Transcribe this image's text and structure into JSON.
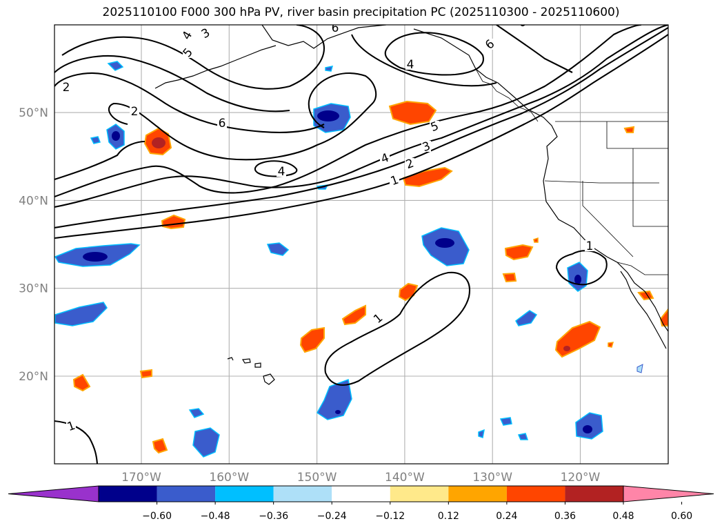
{
  "chart_data": {
    "type": "map_contour",
    "title": "2025110100 F000 300 hPa PV, river basin precipitation PC (2025110300 - 2025110600)",
    "lat_ticks": [
      {
        "value": 50,
        "label": "50°N"
      },
      {
        "value": 40,
        "label": "40°N"
      },
      {
        "value": 30,
        "label": "30°N"
      },
      {
        "value": 20,
        "label": "20°N"
      }
    ],
    "lon_ticks": [
      {
        "value": -170,
        "label": "170°W"
      },
      {
        "value": -160,
        "label": "160°W"
      },
      {
        "value": -150,
        "label": "150°W"
      },
      {
        "value": -140,
        "label": "140°W"
      },
      {
        "value": -130,
        "label": "130°W"
      },
      {
        "value": -120,
        "label": "120°W"
      }
    ],
    "grid": true,
    "contour_field": "300 hPa PV",
    "contour_labels": [
      "1",
      "1",
      "1",
      "1",
      "2",
      "2",
      "2",
      "3",
      "3",
      "4",
      "4",
      "4",
      "4",
      "5",
      "5",
      "6",
      "6",
      "6",
      "6"
    ],
    "fill_field": "river basin precipitation PC",
    "colorbar": {
      "extend": "both",
      "levels": [
        -0.6,
        -0.48,
        -0.36,
        -0.24,
        -0.12,
        0.12,
        0.24,
        0.36,
        0.48,
        0.6
      ],
      "tick_labels": [
        "−0.60",
        "−0.48",
        "−0.36",
        "−0.24",
        "−0.12",
        "0.12",
        "0.24",
        "0.36",
        "0.48",
        "0.60"
      ],
      "colors": [
        "#9932cc",
        "#00008b",
        "#3a5ccc",
        "#00bfff",
        "#aee0f8",
        "#ffffff",
        "#ffe98a",
        "#ffa500",
        "#ff4500",
        "#b22222",
        "#ff85a8"
      ]
    }
  }
}
